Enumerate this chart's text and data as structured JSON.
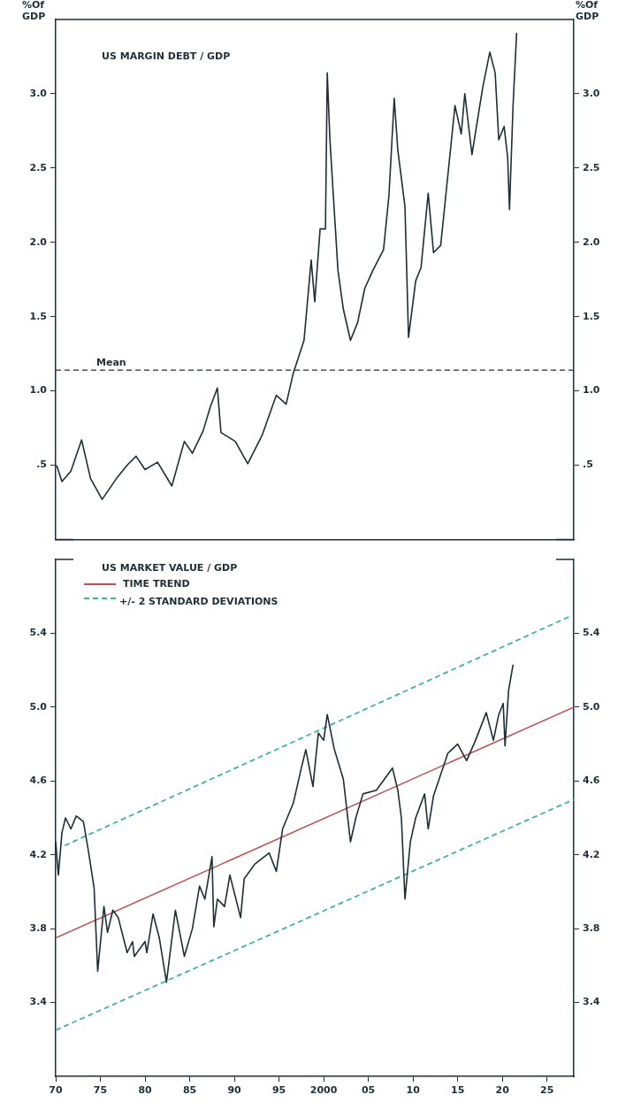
{
  "chart_data": [
    {
      "type": "line",
      "title": "US MARGIN DEBT / GDP",
      "ylabel": "%Of GDP",
      "y2label": "%Of GDP",
      "xlim": [
        1970,
        2028
      ],
      "ylim": [
        0,
        3.5
      ],
      "yticks": [
        {
          "value": 0.5,
          "label": ".5"
        },
        {
          "value": 1,
          "label": "1.0"
        },
        {
          "value": 1.5,
          "label": "1.5"
        },
        {
          "value": 2,
          "label": "2.0"
        },
        {
          "value": 2.5,
          "label": "2.5"
        },
        {
          "value": 3,
          "label": "3.0"
        }
      ],
      "y2lim": [
        0,
        3.5
      ],
      "y2ticks": [
        {
          "value": 0.5,
          "label": ".5"
        },
        {
          "value": 1,
          "label": "1.0"
        },
        {
          "value": 1.5,
          "label": "1.5"
        },
        {
          "value": 2,
          "label": "2.0"
        },
        {
          "value": 2.5,
          "label": "2.5"
        },
        {
          "value": 3,
          "label": "3.0"
        }
      ],
      "tick_labels": "y",
      "ref_lines": [
        {
          "axis": "y",
          "value": 1.14,
          "label": "Mean",
          "color": "#1c2e36",
          "line_style": "dashed"
        }
      ],
      "series": [
        {
          "color": "#1c2e36",
          "x": [
            1970.1,
            1970.7,
            1971.7,
            1972.9,
            1973.9,
            1975.2,
            1976.8,
            1978,
            1979,
            1980,
            1981.4,
            1983,
            1984.4,
            1985.3,
            1986.5,
            1987.3,
            1988.1,
            1988.5,
            1990.1,
            1991.5,
            1993.1,
            1994.7,
            1995.8,
            1996.6,
            1997.8,
            1998.6,
            1999.0,
            1999.6,
            2000.2,
            2000.4,
            2000.7,
            2001.6,
            2002.2,
            2003.0,
            2003.8,
            2004.6,
            2005.5,
            2006.7,
            2007.3,
            2007.9,
            2008.3,
            2009.1,
            2009.5,
            2010.3,
            2010.9,
            2011.7,
            2012.3,
            2013.1,
            2013.9,
            2014.7,
            2015.4,
            2015.8,
            2016.6,
            2017.8,
            2018.6,
            2019.2,
            2019.6,
            2020.2,
            2020.6,
            2020.8,
            2021.2,
            2021.6
          ],
          "values": [
            0.5,
            0.39,
            0.46,
            0.67,
            0.41,
            0.27,
            0.41,
            0.5,
            0.56,
            0.47,
            0.52,
            0.36,
            0.66,
            0.58,
            0.73,
            0.89,
            1.02,
            0.72,
            0.66,
            0.51,
            0.7,
            0.97,
            0.91,
            1.12,
            1.34,
            1.88,
            1.6,
            2.09,
            2.09,
            3.14,
            2.69,
            1.81,
            1.55,
            1.34,
            1.46,
            1.69,
            1.81,
            1.95,
            2.31,
            2.97,
            2.62,
            2.24,
            1.36,
            1.74,
            1.83,
            2.33,
            1.93,
            1.98,
            2.45,
            2.92,
            2.73,
            3.0,
            2.59,
            3.04,
            3.28,
            3.14,
            2.69,
            2.78,
            2.57,
            2.22,
            2.92,
            3.41
          ]
        }
      ]
    },
    {
      "type": "line",
      "title": "US MARKET VALUE / GDP",
      "legend": "top left",
      "xlim": [
        1970,
        2028
      ],
      "xticks": [
        {
          "value": 1970,
          "label": "70"
        },
        {
          "value": 1975,
          "label": "75"
        },
        {
          "value": 1980,
          "label": "80"
        },
        {
          "value": 1985,
          "label": "85"
        },
        {
          "value": 1990,
          "label": "90"
        },
        {
          "value": 1995,
          "label": "95"
        },
        {
          "value": 2000,
          "label": "2000"
        },
        {
          "value": 2005,
          "label": "05"
        },
        {
          "value": 2010,
          "label": "10"
        },
        {
          "value": 2015,
          "label": "15"
        },
        {
          "value": 2020,
          "label": "20"
        },
        {
          "value": 2025,
          "label": "25"
        }
      ],
      "ylim": [
        3.0,
        5.8
      ],
      "yticks": [
        3.4,
        3.8,
        4.2,
        4.6,
        {
          "value": 5.0,
          "label": "5.0"
        },
        5.4
      ],
      "y2lim": [
        3.0,
        5.8
      ],
      "y2ticks": [
        3.4,
        3.8,
        4.2,
        4.6,
        {
          "value": 5.0,
          "label": "5.0"
        },
        5.4
      ],
      "series": [
        {
          "color": "#1c2e36",
          "x": [
            1970,
            1970.3,
            1970.7,
            1971.1,
            1971.7,
            1972.3,
            1973.1,
            1973.7,
            1974.3,
            1974.7,
            1975.4,
            1975.8,
            1976.4,
            1977,
            1978,
            1978.6,
            1978.8,
            1980,
            1980.2,
            1980.9,
            1981.6,
            1982.4,
            1983.4,
            1984.4,
            1985.3,
            1986.1,
            1986.7,
            1987.5,
            1987.7,
            1988.1,
            1988.9,
            1989.5,
            1990.7,
            1991.1,
            1992.3,
            1993.9,
            1994.7,
            1995.4,
            1996.6,
            1997.4,
            1998,
            1998.8,
            1999.4,
            2000,
            2000.4,
            2001.2,
            2002.2,
            2003,
            2003.6,
            2004.4,
            2005.9,
            2007.7,
            2008.3,
            2008.7,
            2009.1,
            2009.7,
            2010.3,
            2011.3,
            2011.7,
            2012.3,
            2013.9,
            2015,
            2016,
            2017,
            2018.2,
            2019,
            2019.6,
            2020.1,
            2020.3,
            2020.7,
            2021.2
          ],
          "values": [
            4.27,
            4.09,
            4.32,
            4.4,
            4.34,
            4.41,
            4.38,
            4.21,
            4.02,
            3.57,
            3.92,
            3.78,
            3.9,
            3.86,
            3.67,
            3.73,
            3.65,
            3.73,
            3.67,
            3.88,
            3.75,
            3.51,
            3.9,
            3.65,
            3.8,
            4.03,
            3.96,
            4.19,
            3.81,
            3.96,
            3.92,
            4.09,
            3.86,
            4.07,
            4.15,
            4.21,
            4.11,
            4.34,
            4.48,
            4.65,
            4.77,
            4.57,
            4.86,
            4.82,
            4.96,
            4.77,
            4.61,
            4.27,
            4.4,
            4.53,
            4.55,
            4.67,
            4.55,
            4.4,
            3.96,
            4.27,
            4.4,
            4.53,
            4.34,
            4.52,
            4.75,
            4.8,
            4.71,
            4.82,
            4.97,
            4.82,
            4.96,
            5.02,
            4.79,
            5.09,
            5.23
          ]
        },
        {
          "name": "TIME TREND",
          "color": "#c0504d",
          "x": [
            1970,
            2028
          ],
          "values": [
            3.75,
            5.0
          ]
        },
        {
          "name": "+/- 2 STANDARD DEVIATIONS",
          "color": "#3fb59a",
          "line_style": "dashed",
          "x": [
            1971,
            2027.5
          ],
          "values": [
            4.25,
            5.49
          ]
        },
        {
          "color": "#3fb59a",
          "line_style": "dashed",
          "x": [
            1970,
            2028
          ],
          "values": [
            3.25,
            4.5
          ]
        }
      ]
    }
  ]
}
